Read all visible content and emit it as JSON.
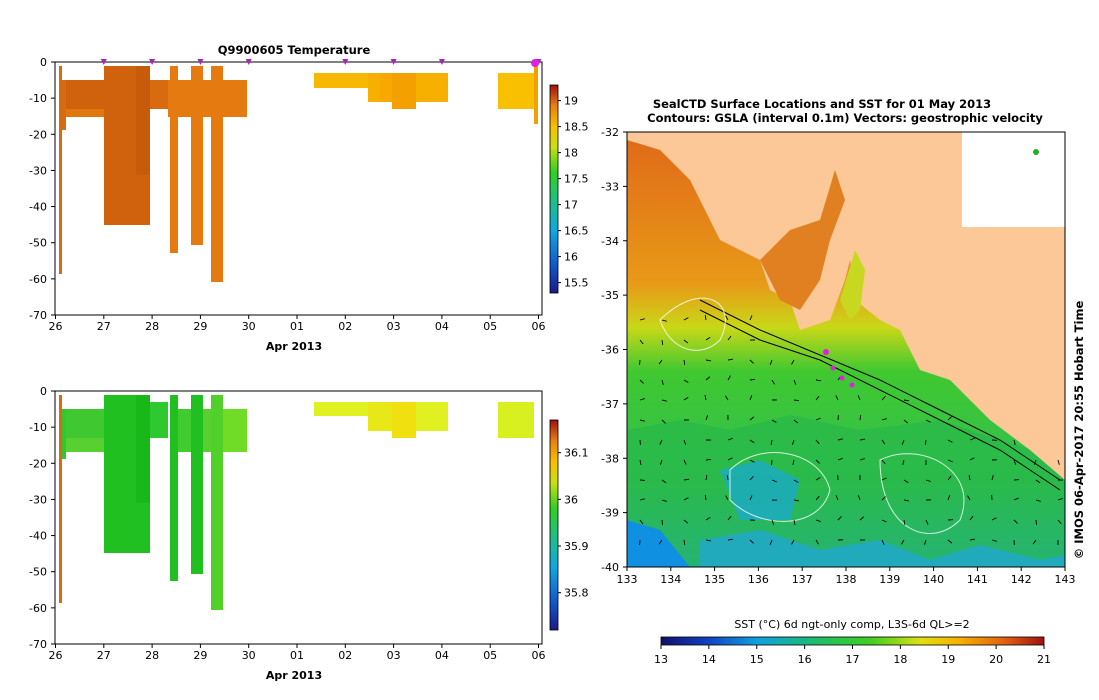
{
  "temperature_title": "Q9900605  Temperature",
  "xlabel": "Apr 2013",
  "map_title_line1": "SealCTD Surface Locations and SST for 01 May 2013",
  "map_title_line2": "Contours: GSLA (interval 0.1m) Vectors: geostrophic velocity",
  "map_side_label": "© IMOS 06-Apr-2017 20:55 Hobart Time",
  "sst_caption": "SST (°C) 6d ngt-only comp, L3S-6d QL>=2",
  "colors": {
    "brown_orange": "#c85a10",
    "orange": "#e88010",
    "yellow": "#f5c000",
    "green": "#20c820",
    "lime": "#80e020",
    "yellowlime": "#d8f020",
    "land": "#fcc898",
    "marker": "#e020e0"
  },
  "chart_data": [
    {
      "type": "heatmap",
      "name": "temperature-profile",
      "title": "Q9900605  Temperature",
      "xlabel": "Apr 2013",
      "x_tick_labels": [
        "26",
        "27",
        "28",
        "29",
        "30",
        "01",
        "02",
        "03",
        "04",
        "05",
        "06"
      ],
      "y_tick_labels": [
        "0",
        "-10",
        "-20",
        "-30",
        "-40",
        "-50",
        "-60",
        "-70"
      ],
      "ylim": [
        -70,
        0
      ],
      "colorbar_ticks": [
        "19",
        "18.5",
        "18",
        "17.5",
        "17",
        "16.5",
        "16",
        "15.5"
      ],
      "colorbar_range": [
        15.3,
        19.3
      ],
      "profile_day_markers": [
        "27",
        "28",
        "29",
        "30",
        "02",
        "03",
        "04",
        "06"
      ]
    },
    {
      "type": "heatmap",
      "name": "salinity-profile",
      "x_tick_labels": [
        "26",
        "27",
        "28",
        "29",
        "30",
        "01",
        "02",
        "03",
        "04",
        "05",
        "06"
      ],
      "y_tick_labels": [
        "0",
        "-10",
        "-20",
        "-30",
        "-40",
        "-50",
        "-60",
        "-70"
      ],
      "xlabel": "Apr 2013",
      "ylim": [
        -70,
        0
      ],
      "colorbar_ticks": [
        "36.1",
        "36",
        "35.9",
        "35.8"
      ],
      "colorbar_range": [
        35.72,
        36.17
      ]
    },
    {
      "type": "heatmap",
      "name": "sst-map",
      "title": "SealCTD Surface Locations and SST for 01 May 2013",
      "x_tick_labels": [
        "133",
        "134",
        "135",
        "136",
        "137",
        "138",
        "139",
        "140",
        "141",
        "142",
        "143"
      ],
      "y_tick_labels": [
        "-32",
        "-33",
        "-34",
        "-35",
        "-36",
        "-37",
        "-38",
        "-39",
        "-40"
      ],
      "xlim": [
        133,
        143
      ],
      "ylim": [
        -40,
        -32
      ],
      "colorbar_ticks": [
        "13",
        "14",
        "15",
        "16",
        "17",
        "18",
        "19",
        "20",
        "21"
      ],
      "colorbar_range": [
        13,
        21
      ],
      "colorbar_label": "SST (°C) 6d ngt-only comp, L3S-6d QL>=2"
    }
  ]
}
